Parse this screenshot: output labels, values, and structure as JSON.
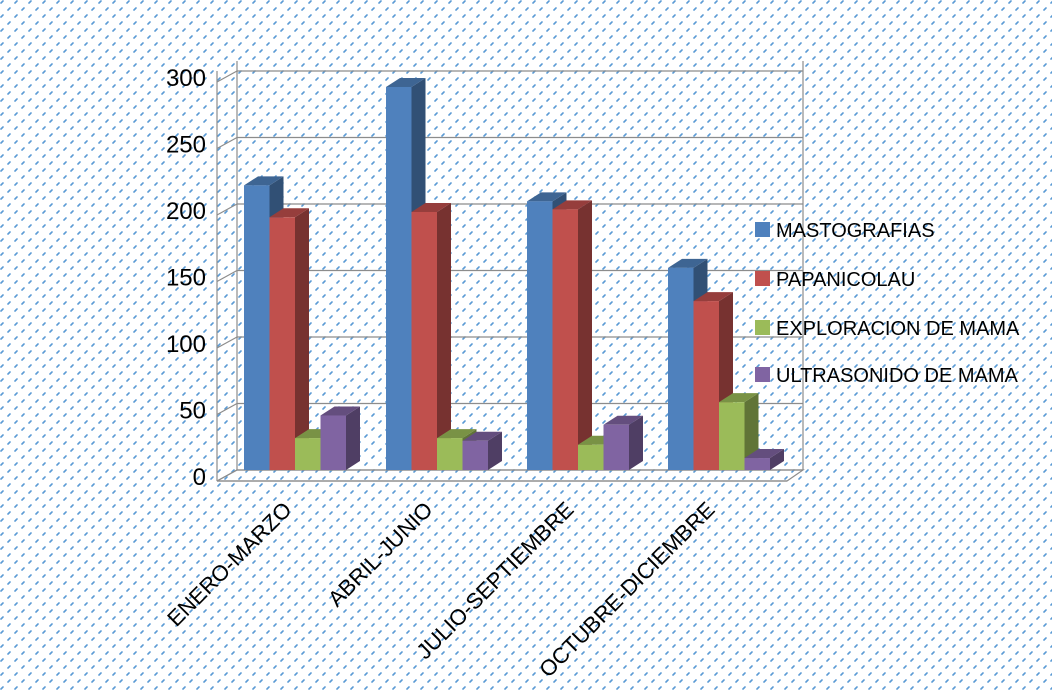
{
  "chart_data": {
    "type": "bar",
    "title": "",
    "xlabel": "",
    "ylabel": "",
    "ylim": [
      0,
      300
    ],
    "yticks": [
      0,
      50,
      100,
      150,
      200,
      250,
      300
    ],
    "categories": [
      "ENERO-MARZO",
      "ABRIL-JUNIO",
      "JULIO-SEPTIEMBRE",
      "OCTUBRE-DICIEMBRE"
    ],
    "series": [
      {
        "name": "MASTOGRAFIAS",
        "values": [
          214,
          288,
          202,
          152
        ]
      },
      {
        "name": "PAPANICOLAU",
        "values": [
          190,
          194,
          196,
          127
        ]
      },
      {
        "name": "EXPLORACION DE MAMA",
        "values": [
          24,
          24,
          19,
          51
        ]
      },
      {
        "name": "ULTRASONIDO DE MAMA",
        "values": [
          41,
          22,
          34,
          9
        ]
      }
    ],
    "grid": true,
    "legend_position": "right",
    "style": "3d-clustered-column"
  },
  "colors": {
    "series": [
      "#4f81bd",
      "#c0504d",
      "#9bbb59",
      "#8064a2"
    ],
    "gridline": "#8c8c8c",
    "pattern_dot": "#5b9bd5",
    "text": "#000000"
  }
}
